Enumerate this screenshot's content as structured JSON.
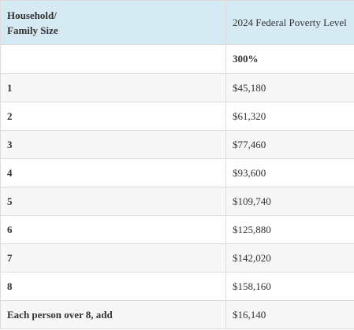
{
  "table": {
    "header": {
      "col1_line1": "Household/",
      "col1_line2": "Family Size",
      "col2": "2024 Federal Poverty Level"
    },
    "percent_row": {
      "size": "",
      "percent": "300%"
    },
    "rows": [
      {
        "size": "1",
        "amount": "$45,180"
      },
      {
        "size": "2",
        "amount": "$61,320"
      },
      {
        "size": "3",
        "amount": "$77,460"
      },
      {
        "size": "4",
        "amount": "$93,600"
      },
      {
        "size": "5",
        "amount": "$109,740"
      },
      {
        "size": "6",
        "amount": "$125,880"
      },
      {
        "size": "7",
        "amount": "$142,020"
      },
      {
        "size": "8",
        "amount": "$158,160"
      },
      {
        "size": "Each person over 8, add",
        "amount": "$16,140"
      }
    ]
  }
}
